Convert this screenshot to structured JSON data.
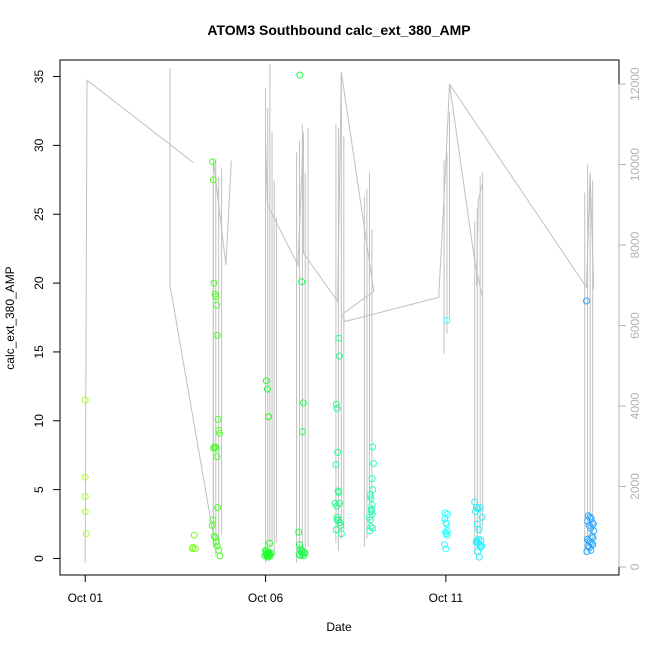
{
  "chart_data": {
    "type": "scatter",
    "title": "ATOM3 Southbound calc_ext_380_AMP",
    "xlabel": "Date",
    "ylabel": "calc_ext_380_AMP",
    "x_tick_labels": [
      "Oct 01",
      "Oct 06",
      "Oct 11"
    ],
    "x_ticks_day": [
      1,
      6,
      11
    ],
    "xlim_day": [
      0.3,
      15.8
    ],
    "ylim": [
      -1.2,
      36.2
    ],
    "y_ticks": [
      0,
      5,
      10,
      15,
      20,
      25,
      30,
      35
    ],
    "secondary_ylim": [
      -200,
      12600
    ],
    "secondary_y_ticks": [
      0,
      2000,
      4000,
      6000,
      8000,
      10000,
      12000
    ],
    "grid": false,
    "background_line": {
      "color": "#c0c0c0",
      "axis": "secondary",
      "segments": [
        [
          [
            1.0,
            100
          ],
          [
            1.05,
            12100
          ],
          [
            4.0,
            10050
          ]
        ],
        [
          [
            3.35,
            12400
          ],
          [
            3.35,
            7000
          ],
          [
            4.55,
            800
          ],
          [
            4.55,
            10150
          ],
          [
            4.9,
            7500
          ],
          [
            5.05,
            10100
          ]
        ],
        [
          [
            6.0,
            10500
          ],
          [
            6.05,
            9000
          ],
          [
            6.9,
            7500
          ],
          [
            7.05,
            10800
          ],
          [
            7.05,
            7800
          ],
          [
            8.0,
            6600
          ],
          [
            8.1,
            12300
          ],
          [
            9.0,
            6850
          ],
          [
            8.15,
            6300
          ]
        ],
        [
          [
            8.1,
            6300
          ],
          [
            8.2,
            6100
          ],
          [
            10.8,
            6700
          ],
          [
            11.0,
            10050
          ],
          [
            11.1,
            12000
          ],
          [
            11.8,
            7600
          ],
          [
            12.0,
            6750
          ]
        ],
        [
          [
            11.1,
            12000
          ],
          [
            14.9,
            6950
          ],
          [
            15.0,
            9800
          ],
          [
            15.1,
            6900
          ]
        ],
        [
          [
            11.85,
            7000
          ],
          [
            11.9,
            9100
          ],
          [
            12.0,
            9500
          ]
        ]
      ],
      "spikes": [
        {
          "x": 4.55,
          "low": 500,
          "high": 9500
        },
        {
          "x": 4.62,
          "low": 300,
          "high": 10100
        },
        {
          "x": 4.7,
          "low": 600,
          "high": 9700
        },
        {
          "x": 4.78,
          "low": 800,
          "high": 9900
        },
        {
          "x": 6.0,
          "low": 100,
          "high": 11900
        },
        {
          "x": 6.06,
          "low": 200,
          "high": 11400
        },
        {
          "x": 6.12,
          "low": 300,
          "high": 12500
        },
        {
          "x": 6.18,
          "low": 500,
          "high": 10800
        },
        {
          "x": 6.24,
          "low": 400,
          "high": 9600
        },
        {
          "x": 6.3,
          "low": 600,
          "high": 8700
        },
        {
          "x": 6.86,
          "low": 100,
          "high": 10300
        },
        {
          "x": 6.94,
          "low": 300,
          "high": 10600
        },
        {
          "x": 7.02,
          "low": 200,
          "high": 11000
        },
        {
          "x": 7.1,
          "low": 400,
          "high": 9800
        },
        {
          "x": 7.18,
          "low": 500,
          "high": 10900
        },
        {
          "x": 7.95,
          "low": 600,
          "high": 11000
        },
        {
          "x": 8.02,
          "low": 400,
          "high": 10900
        },
        {
          "x": 8.1,
          "low": 700,
          "high": 12200
        },
        {
          "x": 8.17,
          "low": 900,
          "high": 10700
        },
        {
          "x": 8.74,
          "low": 500,
          "high": 9200
        },
        {
          "x": 8.81,
          "low": 700,
          "high": 9400
        },
        {
          "x": 8.88,
          "low": 900,
          "high": 9800
        },
        {
          "x": 8.95,
          "low": 1300,
          "high": 8400
        },
        {
          "x": 10.95,
          "low": 5300,
          "high": 10100
        },
        {
          "x": 11.03,
          "low": 5800,
          "high": 10300
        },
        {
          "x": 11.1,
          "low": 6200,
          "high": 11300
        },
        {
          "x": 11.8,
          "low": 300,
          "high": 8600
        },
        {
          "x": 11.87,
          "low": 500,
          "high": 8900
        },
        {
          "x": 11.95,
          "low": 800,
          "high": 9700
        },
        {
          "x": 12.02,
          "low": 1000,
          "high": 9800
        },
        {
          "x": 14.85,
          "low": 300,
          "high": 9300
        },
        {
          "x": 14.93,
          "low": 500,
          "high": 10000
        },
        {
          "x": 15.0,
          "low": 400,
          "high": 9800
        },
        {
          "x": 15.07,
          "low": 700,
          "high": 9600
        }
      ]
    },
    "series": [
      {
        "color": "#a8ff2a",
        "x": [
          1.0,
          1.0,
          1.0,
          1.0,
          1.03
        ],
        "y": [
          11.5,
          5.9,
          4.5,
          3.4,
          1.8
        ]
      },
      {
        "color": "#78ff20",
        "x": [
          3.97,
          3.99,
          4.02,
          4.05
        ],
        "y": [
          0.7,
          0.8,
          1.7,
          0.7
        ]
      },
      {
        "color": "#4dff26",
        "x": [
          4.53,
          4.55,
          4.57,
          4.6,
          4.62,
          4.64,
          4.66,
          4.68,
          4.7,
          4.72,
          4.58,
          4.56,
          4.6,
          4.63,
          4.65,
          4.67,
          4.54,
          4.52,
          4.58,
          4.61,
          4.64,
          4.66,
          4.7,
          4.73
        ],
        "y": [
          28.8,
          27.5,
          20.0,
          19.2,
          19.0,
          18.4,
          16.2,
          10.1,
          9.3,
          9.1,
          8.1,
          8.0,
          8.1,
          8.0,
          7.4,
          3.7,
          2.8,
          2.4,
          1.6,
          1.5,
          1.2,
          0.9,
          0.6,
          0.2
        ]
      },
      {
        "color": "#22ff2e",
        "x": [
          6.02,
          6.05,
          6.08,
          6.11,
          6.0,
          6.03,
          6.06,
          6.1,
          6.13,
          6.16,
          5.98,
          6.01,
          6.04,
          6.07,
          6.1,
          6.02,
          6.05,
          6.08
        ],
        "y": [
          12.9,
          12.3,
          10.3,
          1.1,
          0.6,
          0.5,
          0.4,
          0.3,
          0.2,
          0.4,
          0.2,
          0.3,
          0.2,
          0.1,
          0.4,
          0.5,
          0.3,
          0.2
        ]
      },
      {
        "color": "#20ff4a",
        "x": [
          6.95,
          7.0,
          7.05,
          7.02,
          6.92,
          6.94,
          6.97,
          7.0,
          7.04,
          7.08,
          6.93,
          6.96,
          6.99,
          7.02,
          7.06,
          7.09
        ],
        "y": [
          35.1,
          20.1,
          11.3,
          9.2,
          1.9,
          1.0,
          0.7,
          0.6,
          0.5,
          0.4,
          0.3,
          0.2,
          0.5,
          0.3,
          0.2,
          0.4
        ]
      },
      {
        "color": "#26ff8c",
        "x": [
          8.03,
          8.05,
          7.96,
          7.98,
          8.0,
          7.95,
          7.93,
          8.01,
          8.03,
          8.05,
          7.97,
          7.99,
          8.02,
          8.06,
          8.08,
          8.1,
          7.96,
          7.98
        ],
        "y": [
          16.0,
          14.7,
          11.2,
          10.9,
          7.7,
          6.8,
          4.0,
          4.9,
          4.8,
          4.0,
          3.8,
          3.0,
          2.8,
          2.6,
          2.4,
          1.8,
          2.1,
          2.8
        ]
      },
      {
        "color": "#2effb9",
        "x": [
          8.97,
          8.99,
          8.95,
          8.97,
          8.9,
          8.92,
          8.94,
          8.96,
          8.88,
          8.91,
          8.93,
          8.95,
          8.97,
          8.89,
          8.92,
          8.94
        ],
        "y": [
          8.1,
          6.9,
          5.8,
          5.0,
          4.6,
          4.4,
          3.4,
          3.2,
          3.0,
          2.8,
          3.6,
          3.9,
          2.2,
          2.0,
          2.3,
          3.5
        ]
      },
      {
        "color": "#2effff",
        "x": [
          11.03,
          10.98,
          11.05,
          10.97,
          11.0,
          11.02,
          11.04,
          10.99,
          11.01,
          11.03,
          10.96,
          11.0
        ],
        "y": [
          17.3,
          3.3,
          3.2,
          2.9,
          2.6,
          2.5,
          2.0,
          1.9,
          1.8,
          1.7,
          1.0,
          0.7
        ]
      },
      {
        "color": "#26f0ff",
        "x": [
          11.8,
          11.85,
          11.9,
          11.95,
          12.0,
          11.82,
          11.87,
          11.92,
          11.97,
          11.84,
          11.89,
          11.94,
          11.99,
          11.86,
          11.91,
          11.96,
          11.88,
          11.93
        ],
        "y": [
          4.1,
          3.7,
          3.6,
          3.7,
          3.0,
          3.4,
          2.5,
          2.1,
          1.3,
          1.2,
          1.1,
          1.0,
          0.9,
          1.3,
          1.4,
          0.8,
          0.5,
          0.1
        ]
      },
      {
        "color": "#2aa8ff",
        "x": [
          14.9,
          14.95,
          15.0,
          15.03,
          15.06,
          15.09,
          14.93,
          14.97,
          15.01,
          15.05,
          15.08,
          14.92,
          14.96,
          15.0,
          15.04,
          15.07,
          14.94,
          14.98,
          15.02,
          14.91,
          15.1
        ],
        "y": [
          18.7,
          3.1,
          3.0,
          2.9,
          2.6,
          2.5,
          2.7,
          2.4,
          2.2,
          1.6,
          1.5,
          1.4,
          1.3,
          1.2,
          1.1,
          1.0,
          0.9,
          0.8,
          0.6,
          0.5,
          2.0
        ]
      }
    ]
  }
}
